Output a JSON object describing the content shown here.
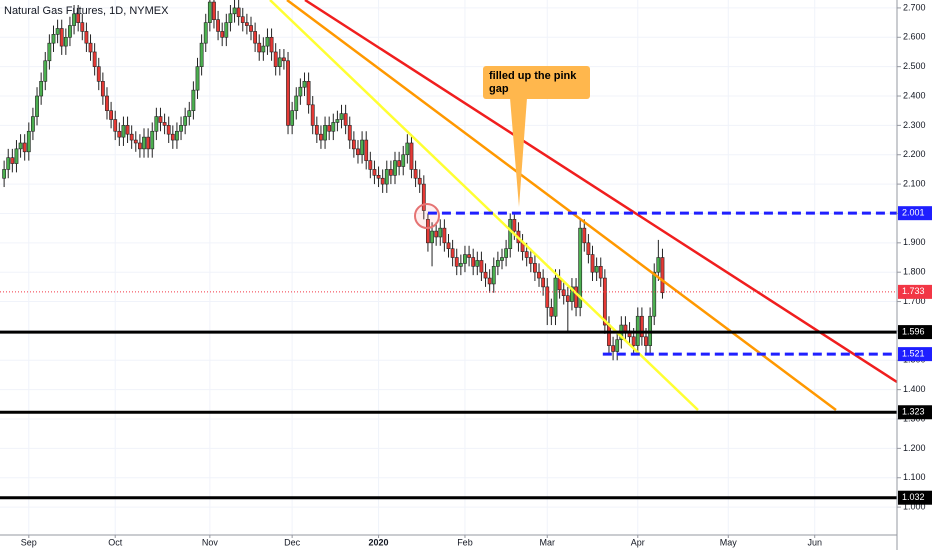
{
  "chart_data": {
    "type": "candlestick",
    "title": "Natural Gas Futures, 1D, NYMEX",
    "annotation": "filled up the pink gap",
    "up_color": "#4caf50",
    "down_color": "#e53935",
    "grid": true,
    "xlim": [
      -7,
      211
    ],
    "ylim": [
      0.905,
      2.727
    ],
    "xticks": [
      {
        "value": 0,
        "label": "Sep"
      },
      {
        "value": 21,
        "label": "Oct"
      },
      {
        "value": 44,
        "label": "Nov"
      },
      {
        "value": 64,
        "label": "Dec"
      },
      {
        "value": 85,
        "label": "2020",
        "bold": true
      },
      {
        "value": 106,
        "label": "Feb"
      },
      {
        "value": 126,
        "label": "Mar"
      },
      {
        "value": 148,
        "label": "Apr"
      },
      {
        "value": 170,
        "label": "May"
      },
      {
        "value": 191,
        "label": "Jun"
      }
    ],
    "yticks": [
      {
        "value": 1,
        "label": "1.000"
      },
      {
        "value": 1.1,
        "label": "1.100"
      },
      {
        "value": 1.2,
        "label": "1.200"
      },
      {
        "value": 1.3,
        "label": "1.300"
      },
      {
        "value": 1.4,
        "label": "1.400"
      },
      {
        "value": 1.5,
        "label": "1.500"
      },
      {
        "value": 1.6,
        "label": "1.600"
      },
      {
        "value": 1.7,
        "label": "1.700"
      },
      {
        "value": 1.8,
        "label": "1.800"
      },
      {
        "value": 1.9,
        "label": "1.900"
      },
      {
        "value": 2,
        "label": "2.000"
      },
      {
        "value": 2.1,
        "label": "2.100"
      },
      {
        "value": 2.2,
        "label": "2.200"
      },
      {
        "value": 2.3,
        "label": "2.300"
      },
      {
        "value": 2.4,
        "label": "2.400"
      },
      {
        "value": 2.5,
        "label": "2.500"
      },
      {
        "value": 2.6,
        "label": "2.600"
      },
      {
        "value": 2.7,
        "label": "2.700"
      }
    ],
    "levels": [
      {
        "value": 2.001,
        "color": "#1f1fff",
        "style": "dashed",
        "from": 97
      },
      {
        "value": 1.733,
        "color": "#f23645",
        "style": "dotted"
      },
      {
        "value": 1.596,
        "color": "#000000",
        "style": "solid"
      },
      {
        "value": 1.521,
        "color": "#1f1fff",
        "style": "dashed",
        "from": 139.5
      },
      {
        "value": 1.323,
        "color": "#000000",
        "style": "solid"
      },
      {
        "value": 1.032,
        "color": "#000000",
        "style": "solid"
      }
    ],
    "ohlc": [
      [
        -6,
        2.12,
        2.18,
        2.09,
        2.15
      ],
      [
        -5,
        2.15,
        2.22,
        2.12,
        2.19
      ],
      [
        -4,
        2.19,
        2.22,
        2.14,
        2.17
      ],
      [
        -3,
        2.17,
        2.25,
        2.14,
        2.22
      ],
      [
        -2,
        2.22,
        2.27,
        2.19,
        2.24
      ],
      [
        -1,
        2.24,
        2.27,
        2.18,
        2.21
      ],
      [
        0,
        2.21,
        2.31,
        2.18,
        2.28
      ],
      [
        1,
        2.28,
        2.36,
        2.25,
        2.33
      ],
      [
        2,
        2.33,
        2.43,
        2.3,
        2.4
      ],
      [
        3,
        2.4,
        2.48,
        2.37,
        2.45
      ],
      [
        4,
        2.45,
        2.55,
        2.42,
        2.52
      ],
      [
        5,
        2.52,
        2.61,
        2.49,
        2.58
      ],
      [
        6,
        2.58,
        2.64,
        2.55,
        2.61
      ],
      [
        7,
        2.61,
        2.66,
        2.58,
        2.63
      ],
      [
        8,
        2.63,
        2.66,
        2.54,
        2.57
      ],
      [
        9,
        2.57,
        2.63,
        2.54,
        2.6
      ],
      [
        10,
        2.6,
        2.67,
        2.57,
        2.64
      ],
      [
        11,
        2.64,
        2.71,
        2.61,
        2.68
      ],
      [
        12,
        2.68,
        2.71,
        2.62,
        2.65
      ],
      [
        13,
        2.65,
        2.68,
        2.59,
        2.62
      ],
      [
        14,
        2.62,
        2.65,
        2.55,
        2.58
      ],
      [
        15,
        2.58,
        2.61,
        2.52,
        2.55
      ],
      [
        16,
        2.55,
        2.58,
        2.47,
        2.5
      ],
      [
        17,
        2.5,
        2.53,
        2.42,
        2.45
      ],
      [
        18,
        2.45,
        2.48,
        2.37,
        2.4
      ],
      [
        19,
        2.4,
        2.43,
        2.32,
        2.35
      ],
      [
        20,
        2.35,
        2.38,
        2.29,
        2.32
      ],
      [
        21,
        2.32,
        2.35,
        2.25,
        2.28
      ],
      [
        22,
        2.28,
        2.31,
        2.23,
        2.26
      ],
      [
        23,
        2.26,
        2.33,
        2.23,
        2.3
      ],
      [
        24,
        2.3,
        2.33,
        2.24,
        2.27
      ],
      [
        25,
        2.27,
        2.3,
        2.22,
        2.25
      ],
      [
        26,
        2.25,
        2.28,
        2.21,
        2.24
      ],
      [
        27,
        2.24,
        2.27,
        2.19,
        2.22
      ],
      [
        28,
        2.22,
        2.29,
        2.19,
        2.26
      ],
      [
        29,
        2.26,
        2.29,
        2.19,
        2.22
      ],
      [
        30,
        2.22,
        2.31,
        2.19,
        2.28
      ],
      [
        31,
        2.28,
        2.36,
        2.25,
        2.33
      ],
      [
        32,
        2.33,
        2.36,
        2.28,
        2.31
      ],
      [
        33,
        2.31,
        2.34,
        2.27,
        2.3
      ],
      [
        34,
        2.3,
        2.33,
        2.24,
        2.27
      ],
      [
        35,
        2.27,
        2.3,
        2.22,
        2.25
      ],
      [
        36,
        2.25,
        2.31,
        2.22,
        2.28
      ],
      [
        37,
        2.28,
        2.33,
        2.25,
        2.3
      ],
      [
        38,
        2.3,
        2.36,
        2.27,
        2.33
      ],
      [
        39,
        2.33,
        2.38,
        2.3,
        2.35
      ],
      [
        40,
        2.35,
        2.45,
        2.32,
        2.42
      ],
      [
        41,
        2.42,
        2.53,
        2.39,
        2.5
      ],
      [
        42,
        2.5,
        2.61,
        2.47,
        2.58
      ],
      [
        43,
        2.58,
        2.68,
        2.55,
        2.65
      ],
      [
        44,
        2.65,
        2.75,
        2.62,
        2.72
      ],
      [
        45,
        2.72,
        2.75,
        2.63,
        2.66
      ],
      [
        46,
        2.66,
        2.69,
        2.59,
        2.62
      ],
      [
        47,
        2.62,
        2.65,
        2.57,
        2.6
      ],
      [
        48,
        2.6,
        2.68,
        2.57,
        2.65
      ],
      [
        49,
        2.65,
        2.71,
        2.62,
        2.68
      ],
      [
        50,
        2.68,
        2.73,
        2.65,
        2.7
      ],
      [
        51,
        2.7,
        2.73,
        2.64,
        2.67
      ],
      [
        52,
        2.67,
        2.7,
        2.62,
        2.65
      ],
      [
        53,
        2.65,
        2.68,
        2.61,
        2.64
      ],
      [
        54,
        2.64,
        2.67,
        2.59,
        2.62
      ],
      [
        55,
        2.62,
        2.65,
        2.55,
        2.58
      ],
      [
        56,
        2.58,
        2.61,
        2.52,
        2.55
      ],
      [
        57,
        2.55,
        2.6,
        2.52,
        2.57
      ],
      [
        58,
        2.57,
        2.63,
        2.54,
        2.6
      ],
      [
        59,
        2.6,
        2.63,
        2.52,
        2.55
      ],
      [
        60,
        2.55,
        2.58,
        2.47,
        2.5
      ],
      [
        61,
        2.5,
        2.56,
        2.47,
        2.53
      ],
      [
        62,
        2.53,
        2.56,
        2.49,
        2.52
      ],
      [
        63,
        2.52,
        2.55,
        2.27,
        2.3
      ],
      [
        64,
        2.3,
        2.38,
        2.27,
        2.35
      ],
      [
        65,
        2.35,
        2.43,
        2.32,
        2.4
      ],
      [
        66,
        2.4,
        2.46,
        2.37,
        2.43
      ],
      [
        67,
        2.43,
        2.48,
        2.4,
        2.45
      ],
      [
        68,
        2.45,
        2.48,
        2.34,
        2.37
      ],
      [
        69,
        2.37,
        2.4,
        2.27,
        2.3
      ],
      [
        70,
        2.3,
        2.33,
        2.24,
        2.27
      ],
      [
        71,
        2.27,
        2.3,
        2.22,
        2.25
      ],
      [
        72,
        2.25,
        2.33,
        2.22,
        2.3
      ],
      [
        73,
        2.3,
        2.33,
        2.25,
        2.28
      ],
      [
        74,
        2.28,
        2.34,
        2.25,
        2.31
      ],
      [
        75,
        2.31,
        2.35,
        2.28,
        2.32
      ],
      [
        76,
        2.32,
        2.37,
        2.29,
        2.34
      ],
      [
        77,
        2.34,
        2.37,
        2.27,
        2.3
      ],
      [
        78,
        2.3,
        2.33,
        2.22,
        2.25
      ],
      [
        79,
        2.25,
        2.28,
        2.19,
        2.22
      ],
      [
        80,
        2.22,
        2.25,
        2.17,
        2.2
      ],
      [
        81,
        2.2,
        2.28,
        2.17,
        2.25
      ],
      [
        82,
        2.25,
        2.28,
        2.15,
        2.18
      ],
      [
        83,
        2.18,
        2.21,
        2.12,
        2.15
      ],
      [
        84,
        2.15,
        2.18,
        2.1,
        2.13
      ],
      [
        85,
        2.13,
        2.16,
        2.09,
        2.12
      ],
      [
        86,
        2.12,
        2.15,
        2.07,
        2.1
      ],
      [
        87,
        2.1,
        2.18,
        2.07,
        2.15
      ],
      [
        88,
        2.15,
        2.18,
        2.1,
        2.13
      ],
      [
        89,
        2.13,
        2.21,
        2.1,
        2.18
      ],
      [
        90,
        2.18,
        2.21,
        2.13,
        2.16
      ],
      [
        91,
        2.16,
        2.23,
        2.13,
        2.2
      ],
      [
        92,
        2.2,
        2.27,
        2.17,
        2.24
      ],
      [
        93,
        2.24,
        2.27,
        2.12,
        2.15
      ],
      [
        94,
        2.15,
        2.18,
        2.09,
        2.12
      ],
      [
        95,
        2.12,
        2.15,
        2.07,
        2.1
      ],
      [
        96,
        2.1,
        2.13,
        1.98,
        2.01
      ],
      [
        97,
        1.98,
        2.0,
        1.87,
        1.9
      ],
      [
        98,
        1.9,
        1.97,
        1.82,
        1.94
      ],
      [
        99,
        1.94,
        1.97,
        1.89,
        1.92
      ],
      [
        100,
        1.92,
        1.98,
        1.89,
        1.95
      ],
      [
        101,
        1.95,
        1.98,
        1.87,
        1.9
      ],
      [
        102,
        1.9,
        1.93,
        1.85,
        1.88
      ],
      [
        103,
        1.88,
        1.91,
        1.82,
        1.85
      ],
      [
        104,
        1.85,
        1.88,
        1.79,
        1.82
      ],
      [
        105,
        1.82,
        1.86,
        1.79,
        1.83
      ],
      [
        106,
        1.83,
        1.89,
        1.8,
        1.86
      ],
      [
        107,
        1.86,
        1.89,
        1.82,
        1.85
      ],
      [
        108,
        1.85,
        1.88,
        1.79,
        1.82
      ],
      [
        109,
        1.82,
        1.87,
        1.79,
        1.84
      ],
      [
        110,
        1.84,
        1.87,
        1.77,
        1.8
      ],
      [
        111,
        1.8,
        1.83,
        1.75,
        1.78
      ],
      [
        112,
        1.78,
        1.81,
        1.73,
        1.76
      ],
      [
        113,
        1.76,
        1.85,
        1.73,
        1.82
      ],
      [
        114,
        1.82,
        1.87,
        1.79,
        1.84
      ],
      [
        115,
        1.84,
        1.88,
        1.81,
        1.85
      ],
      [
        116,
        1.85,
        1.91,
        1.82,
        1.88
      ],
      [
        117,
        1.88,
        2.0,
        1.85,
        1.98
      ],
      [
        118,
        1.98,
        2.0,
        1.91,
        1.94
      ],
      [
        119,
        1.94,
        1.97,
        1.87,
        1.9
      ],
      [
        120,
        1.9,
        1.93,
        1.84,
        1.87
      ],
      [
        121,
        1.87,
        1.9,
        1.82,
        1.85
      ],
      [
        122,
        1.85,
        1.88,
        1.8,
        1.83
      ],
      [
        123,
        1.83,
        1.86,
        1.77,
        1.8
      ],
      [
        124,
        1.8,
        1.83,
        1.75,
        1.78
      ],
      [
        125,
        1.78,
        1.81,
        1.72,
        1.75
      ],
      [
        126,
        1.75,
        1.78,
        1.62,
        1.68
      ],
      [
        127,
        1.68,
        1.71,
        1.62,
        1.65
      ],
      [
        128,
        1.65,
        1.81,
        1.62,
        1.78
      ],
      [
        129,
        1.78,
        1.81,
        1.71,
        1.74
      ],
      [
        130,
        1.74,
        1.77,
        1.69,
        1.72
      ],
      [
        131,
        1.72,
        1.75,
        1.6,
        1.7
      ],
      [
        132,
        1.7,
        1.78,
        1.67,
        1.75
      ],
      [
        133,
        1.75,
        1.78,
        1.65,
        1.68
      ],
      [
        134,
        1.68,
        1.98,
        1.65,
        1.95
      ],
      [
        135,
        1.95,
        1.98,
        1.87,
        1.9
      ],
      [
        136,
        1.9,
        1.93,
        1.83,
        1.86
      ],
      [
        137,
        1.86,
        1.89,
        1.77,
        1.8
      ],
      [
        138,
        1.8,
        1.85,
        1.77,
        1.82
      ],
      [
        139,
        1.82,
        1.85,
        1.75,
        1.78
      ],
      [
        140,
        1.78,
        1.81,
        1.59,
        1.62
      ],
      [
        141,
        1.62,
        1.65,
        1.52,
        1.55
      ],
      [
        142,
        1.55,
        1.58,
        1.5,
        1.53
      ],
      [
        143,
        1.53,
        1.6,
        1.5,
        1.57
      ],
      [
        144,
        1.57,
        1.65,
        1.54,
        1.62
      ],
      [
        145,
        1.62,
        1.65,
        1.57,
        1.6
      ],
      [
        146,
        1.6,
        1.63,
        1.55,
        1.58
      ],
      [
        147,
        1.58,
        1.61,
        1.52,
        1.55
      ],
      [
        148,
        1.55,
        1.68,
        1.52,
        1.65
      ],
      [
        149,
        1.65,
        1.68,
        1.55,
        1.58
      ],
      [
        150,
        1.58,
        1.61,
        1.52,
        1.55
      ],
      [
        151,
        1.55,
        1.68,
        1.52,
        1.65
      ],
      [
        152,
        1.65,
        1.83,
        1.62,
        1.8
      ],
      [
        153,
        1.8,
        1.91,
        1.77,
        1.85
      ],
      [
        154,
        1.85,
        1.88,
        1.71,
        1.73
      ]
    ]
  }
}
